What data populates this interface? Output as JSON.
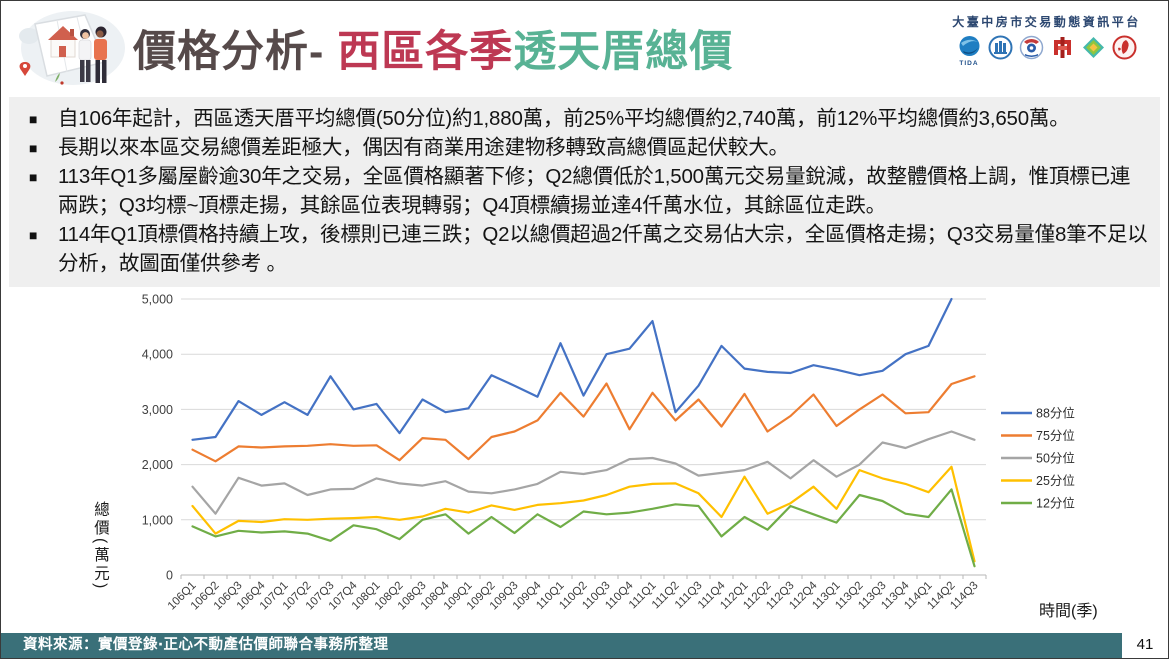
{
  "header": {
    "title_prefix": "價格分析- ",
    "title_highlight": "西區各季",
    "title_suffix": "透天厝總價",
    "platform_name": "大臺中房市交易動態資訊平台",
    "tida_label": "TIDA",
    "logo_names": [
      "tida-logo",
      "realtor-association-logo",
      "government-emblem-logo",
      "land-agency-logo",
      "cube-logo",
      "appraiser-association-seal"
    ]
  },
  "summary": {
    "bullet_marker": "■",
    "bullets": [
      "自106年起計，西區透天厝平均總價(50分位)約1,880萬，前25%平均總價約2,740萬，前12%平均總價約3,650萬。",
      "長期以來本區交易總價差距極大，偶因有商業用途建物移轉致高總價區起伏較大。",
      "113年Q1多屬屋齡逾30年之交易，全區價格顯著下修；Q2總價低於1,500萬元交易量銳減，故整體價格上調，惟頂標已連兩跌；Q3均標~頂標走揚，其餘區位表現轉弱；Q4頂標續揚並達4仟萬水位，其餘區位走跌。",
      "114年Q1頂標價格持續上攻，後標則已連三跌；Q2以總價超過2仟萬之交易佔大宗，全區價格走揚；Q3交易量僅8筆不足以分析，故圖面僅供參考 。"
    ]
  },
  "chart_data": {
    "type": "line",
    "xlabel": "時間(季)",
    "ylabel": "總價(萬元)",
    "ylim": [
      0,
      5000
    ],
    "ytick_step": 1000,
    "grid": true,
    "legend_position": "right",
    "categories": [
      "106Q1",
      "106Q2",
      "106Q3",
      "106Q4",
      "107Q1",
      "107Q2",
      "107Q3",
      "107Q4",
      "108Q1",
      "108Q2",
      "108Q3",
      "108Q4",
      "109Q1",
      "109Q2",
      "109Q3",
      "109Q4",
      "110Q1",
      "110Q2",
      "110Q3",
      "110Q4",
      "111Q1",
      "111Q2",
      "111Q3",
      "111Q4",
      "112Q1",
      "112Q2",
      "112Q3",
      "112Q4",
      "113Q1",
      "113Q2",
      "113Q3",
      "113Q4",
      "114Q1",
      "114Q2",
      "114Q3"
    ],
    "series": [
      {
        "name": "88分位",
        "color": "#4472C4",
        "values": [
          2450,
          2500,
          3150,
          2900,
          3130,
          2900,
          3600,
          3000,
          3100,
          2570,
          3180,
          2950,
          3020,
          3620,
          3430,
          3230,
          4200,
          3250,
          4000,
          4100,
          4600,
          2950,
          3430,
          4150,
          3740,
          3680,
          3660,
          3800,
          3720,
          3620,
          3700,
          4000,
          4150,
          5000,
          null
        ]
      },
      {
        "name": "75分位",
        "color": "#ED7D31",
        "values": [
          2270,
          2060,
          2330,
          2310,
          2330,
          2340,
          2370,
          2340,
          2350,
          2080,
          2480,
          2450,
          2100,
          2500,
          2600,
          2800,
          3300,
          2870,
          3470,
          2640,
          3300,
          2800,
          3180,
          2690,
          3280,
          2600,
          2880,
          3270,
          2700,
          3000,
          3270,
          2930,
          2950,
          3460,
          3600
        ]
      },
      {
        "name": "50分位",
        "color": "#A5A5A5",
        "values": [
          1600,
          1110,
          1760,
          1620,
          1660,
          1450,
          1550,
          1560,
          1750,
          1660,
          1620,
          1700,
          1510,
          1480,
          1550,
          1650,
          1870,
          1830,
          1900,
          2100,
          2120,
          2020,
          1800,
          1850,
          1900,
          2050,
          1750,
          2080,
          1780,
          2000,
          2400,
          2300,
          2460,
          2600,
          2450
        ]
      },
      {
        "name": "25分位",
        "color": "#FFC000",
        "values": [
          1250,
          750,
          980,
          960,
          1010,
          1000,
          1020,
          1030,
          1050,
          1000,
          1060,
          1200,
          1130,
          1260,
          1180,
          1270,
          1300,
          1350,
          1450,
          1600,
          1650,
          1660,
          1480,
          1050,
          1780,
          1110,
          1300,
          1600,
          1200,
          1900,
          1750,
          1650,
          1500,
          1960,
          250
        ]
      },
      {
        "name": "12分位",
        "color": "#70AD47",
        "values": [
          880,
          700,
          800,
          770,
          790,
          750,
          620,
          900,
          830,
          650,
          1000,
          1100,
          750,
          1050,
          760,
          1100,
          870,
          1150,
          1100,
          1130,
          1200,
          1280,
          1250,
          700,
          1050,
          820,
          1250,
          1100,
          950,
          1450,
          1340,
          1110,
          1050,
          1550,
          160
        ]
      }
    ]
  },
  "footer": {
    "source": "資料來源：實價登錄‧正心不動產估價師聯合事務所整理",
    "page_number": "41"
  },
  "colors": {
    "title_dark": "#564a4a",
    "title_red": "#bd3853",
    "title_green": "#58b294",
    "summary_bg": "#efefef",
    "footer_teal": "#3a7079",
    "gridline": "#d9d9d9",
    "axis": "#b7b7b7"
  }
}
